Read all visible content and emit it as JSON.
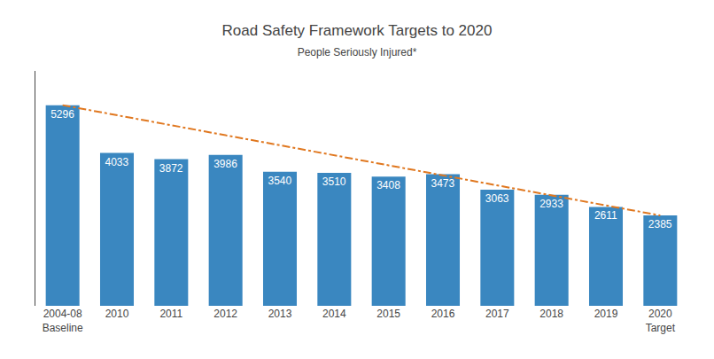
{
  "chart_data": {
    "type": "bar",
    "title": "Road Safety Framework Targets to 2020",
    "subtitle": "People Seriously Injured*",
    "categories": [
      "2004-08\nBaseline",
      "2010",
      "2011",
      "2012",
      "2013",
      "2014",
      "2015",
      "2016",
      "2017",
      "2018",
      "2019",
      "2020\nTarget"
    ],
    "series": [
      {
        "type": "bar",
        "color": "#3A87C0",
        "values": [
          5296,
          4033,
          3872,
          3986,
          3540,
          3510,
          3408,
          3473,
          3063,
          2933,
          2611,
          2385
        ]
      },
      {
        "type": "line",
        "color": "#E07820",
        "line_style": "dashdot",
        "values": [
          5296,
          null,
          null,
          null,
          null,
          null,
          null,
          null,
          null,
          null,
          null,
          2385
        ]
      }
    ],
    "ylim": [
      0,
      6200
    ],
    "data_labels": true,
    "tick_labels": "x",
    "grid": false
  }
}
